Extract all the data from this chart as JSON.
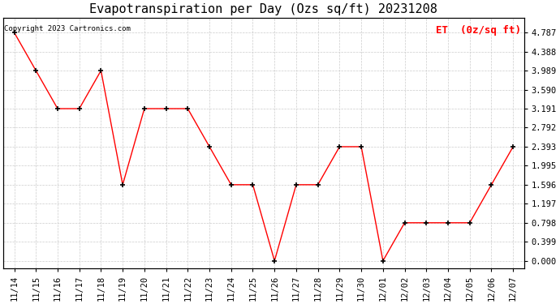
{
  "title": "Evapotranspiration per Day (Ozs sq/ft) 20231208",
  "copyright": "Copyright 2023 Cartronics.com",
  "legend_label": "ET  (0z/sq ft)",
  "x_labels": [
    "11/14",
    "11/15",
    "11/16",
    "11/17",
    "11/18",
    "11/19",
    "11/20",
    "11/21",
    "11/22",
    "11/23",
    "11/24",
    "11/25",
    "11/26",
    "11/27",
    "11/28",
    "11/29",
    "11/30",
    "12/01",
    "12/02",
    "12/03",
    "12/04",
    "12/05",
    "12/06",
    "12/07"
  ],
  "y_values": [
    4.787,
    3.989,
    3.191,
    3.191,
    3.989,
    1.596,
    3.191,
    3.191,
    3.191,
    2.393,
    1.596,
    1.596,
    0.0,
    1.596,
    1.596,
    2.393,
    2.393,
    0.0,
    0.798,
    0.798,
    0.798,
    0.798,
    1.596,
    2.393
  ],
  "y_ticks": [
    0.0,
    0.399,
    0.798,
    1.197,
    1.596,
    1.995,
    2.393,
    2.792,
    3.191,
    3.59,
    3.989,
    4.388,
    4.787
  ],
  "line_color": "#ff0000",
  "marker_color": "black",
  "title_fontsize": 11,
  "copyright_fontsize": 6.5,
  "legend_fontsize": 9,
  "tick_fontsize": 7.5,
  "background_color": "#ffffff",
  "grid_color": "#cccccc",
  "ylim": [
    0.0,
    4.787
  ],
  "figwidth": 6.9,
  "figheight": 3.75,
  "dpi": 100
}
